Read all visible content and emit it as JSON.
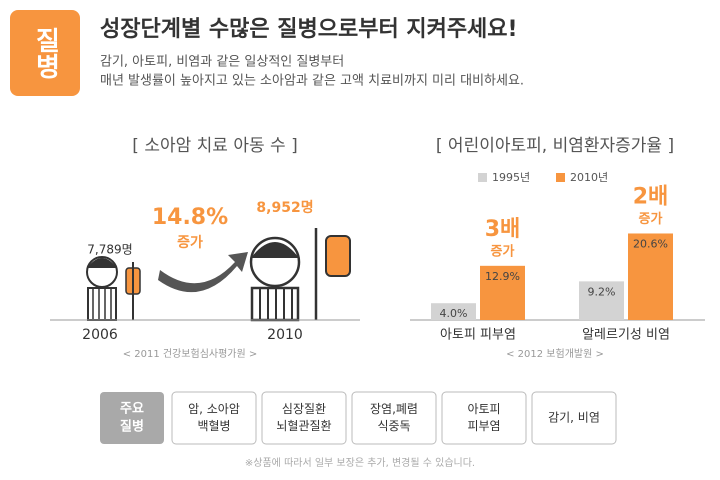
{
  "badge": "질병",
  "title": "성장단계별 수많은 질병으로부터 지켜주세요!",
  "subtitle": [
    "감기, 아토피, 비염과 같은 일상적인 질병부터",
    "매년 발생률이 높아지고 있는 소아암과 같은 고액 치료비까지 미리 대비하세요."
  ],
  "left": {
    "heading": "[ 소아암 치료 아동 수 ]",
    "before": {
      "count": "7,789명",
      "year": "2006"
    },
    "after": {
      "count": "8,952명",
      "year": "2010"
    },
    "change": "14.8%",
    "change_label": "증가",
    "source": "< 2011 건강보험심사평가원 >"
  },
  "chart_data": {
    "type": "bar",
    "title": "[ 어린이아토피, 비염환자증가율 ]",
    "categories": [
      "아토피 피부염",
      "알레르기성 비염"
    ],
    "series": [
      {
        "name": "1995년",
        "color": "#d3d3d3",
        "values": [
          4.0,
          9.2
        ],
        "value_labels": [
          "4.0%",
          "9.2%"
        ]
      },
      {
        "name": "2010년",
        "color": "#f7953f",
        "values": [
          12.9,
          20.6
        ],
        "value_labels": [
          "12.9%",
          "20.6%"
        ]
      }
    ],
    "annotations": [
      {
        "big": "3배",
        "small": "증가"
      },
      {
        "big": "2배",
        "small": "증가"
      }
    ],
    "source": "< 2012 보험개발원 >"
  },
  "tabs": {
    "label": [
      "주요",
      "질병"
    ],
    "items": [
      [
        "암, 소아암",
        "백혈병"
      ],
      [
        "심장질환",
        "뇌혈관질환"
      ],
      [
        "장염,폐렴",
        "식중독"
      ],
      [
        "아토피",
        "피부염"
      ],
      [
        "감기, 비염"
      ]
    ]
  },
  "footnote": "※상품에 따라서 일부 보장은 추가, 변경될 수 있습니다."
}
